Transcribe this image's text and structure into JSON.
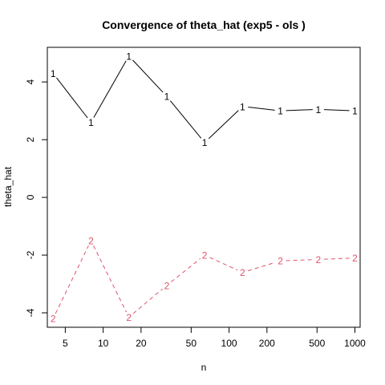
{
  "chart_data": {
    "type": "line",
    "title": "Convergence of theta_hat (exp5 - ols )",
    "xlabel": "n",
    "ylabel": "theta_hat",
    "x_scale": "log",
    "xlim": [
      3.6,
      1100
    ],
    "ylim": [
      -4.5,
      5.2
    ],
    "x_ticks": [
      5,
      10,
      20,
      50,
      100,
      200,
      500,
      1000
    ],
    "y_ticks": [
      -4,
      -2,
      0,
      2,
      4
    ],
    "grid": false,
    "legend": "none",
    "x": [
      4,
      8,
      16,
      32,
      64,
      128,
      256,
      512,
      1000
    ],
    "series": [
      {
        "marker": "1",
        "color": "#000000",
        "line_style": "solid",
        "values": [
          4.3,
          2.6,
          4.9,
          3.5,
          1.9,
          3.15,
          3.0,
          3.05,
          3.0
        ]
      },
      {
        "marker": "2",
        "color": "#DF536B",
        "line_style": "dashed",
        "values": [
          -4.2,
          -1.5,
          -4.15,
          -3.05,
          -2.0,
          -2.6,
          -2.2,
          -2.15,
          -2.1
        ]
      }
    ]
  }
}
